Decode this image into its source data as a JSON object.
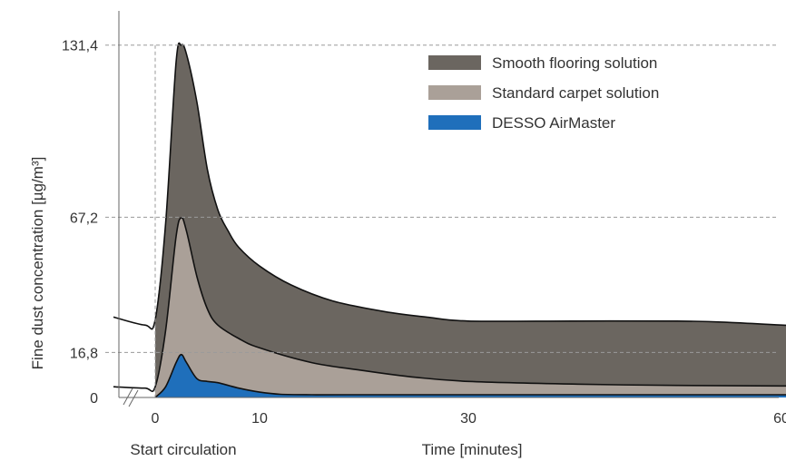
{
  "chart_data": {
    "type": "area",
    "title": "",
    "ylabel": "Fine dust concentration [µg/m³]",
    "xlabel": "Time [minutes]",
    "x_annotation": "Start circulation",
    "y_ticks": [
      "131,4",
      "67,2",
      "16,8",
      "0"
    ],
    "x_ticks": [
      "0",
      "10",
      "30",
      "60"
    ],
    "reference_lines": [
      131.4,
      67.2,
      16.8
    ],
    "xlim": [
      -4,
      67
    ],
    "ylim": [
      0,
      138
    ],
    "grid": false,
    "legend_position": "top-right",
    "series": [
      {
        "name": "Smooth flooring solution",
        "color": "#6b6660",
        "x": [
          -4,
          -1,
          0,
          1,
          2,
          2.5,
          3,
          4,
          5,
          6,
          7,
          8,
          10,
          13,
          17,
          22,
          26,
          30,
          40,
          50,
          55,
          60,
          67
        ],
        "y": [
          30,
          27,
          29,
          65,
          125,
          131.4,
          128,
          110,
          85,
          70,
          62,
          56,
          49,
          42,
          36,
          32,
          30,
          28.5,
          28.5,
          28.5,
          28,
          27,
          26
        ]
      },
      {
        "name": "Standard carpet solution",
        "color": "#aaa098",
        "x": [
          -4,
          -1,
          0,
          1,
          2,
          2.5,
          3,
          4,
          5,
          6,
          8,
          10,
          15,
          20,
          25,
          30,
          40,
          50,
          60,
          67
        ],
        "y": [
          4,
          3.5,
          4,
          25,
          60,
          67,
          62,
          45,
          33,
          27,
          22,
          18.5,
          13,
          10,
          7.5,
          6,
          5,
          4.5,
          4.3,
          4.2
        ]
      },
      {
        "name": "DESSO AirMaster",
        "color": "#1f6fbb",
        "x": [
          0,
          1,
          2,
          2.5,
          3,
          4,
          5,
          6,
          8,
          10,
          12,
          15,
          20,
          30,
          45,
          60,
          67
        ],
        "y": [
          0,
          4,
          13,
          16,
          13,
          7,
          6,
          5.5,
          3.5,
          2,
          1.2,
          1,
          1,
          1,
          1,
          1,
          1
        ]
      }
    ]
  }
}
